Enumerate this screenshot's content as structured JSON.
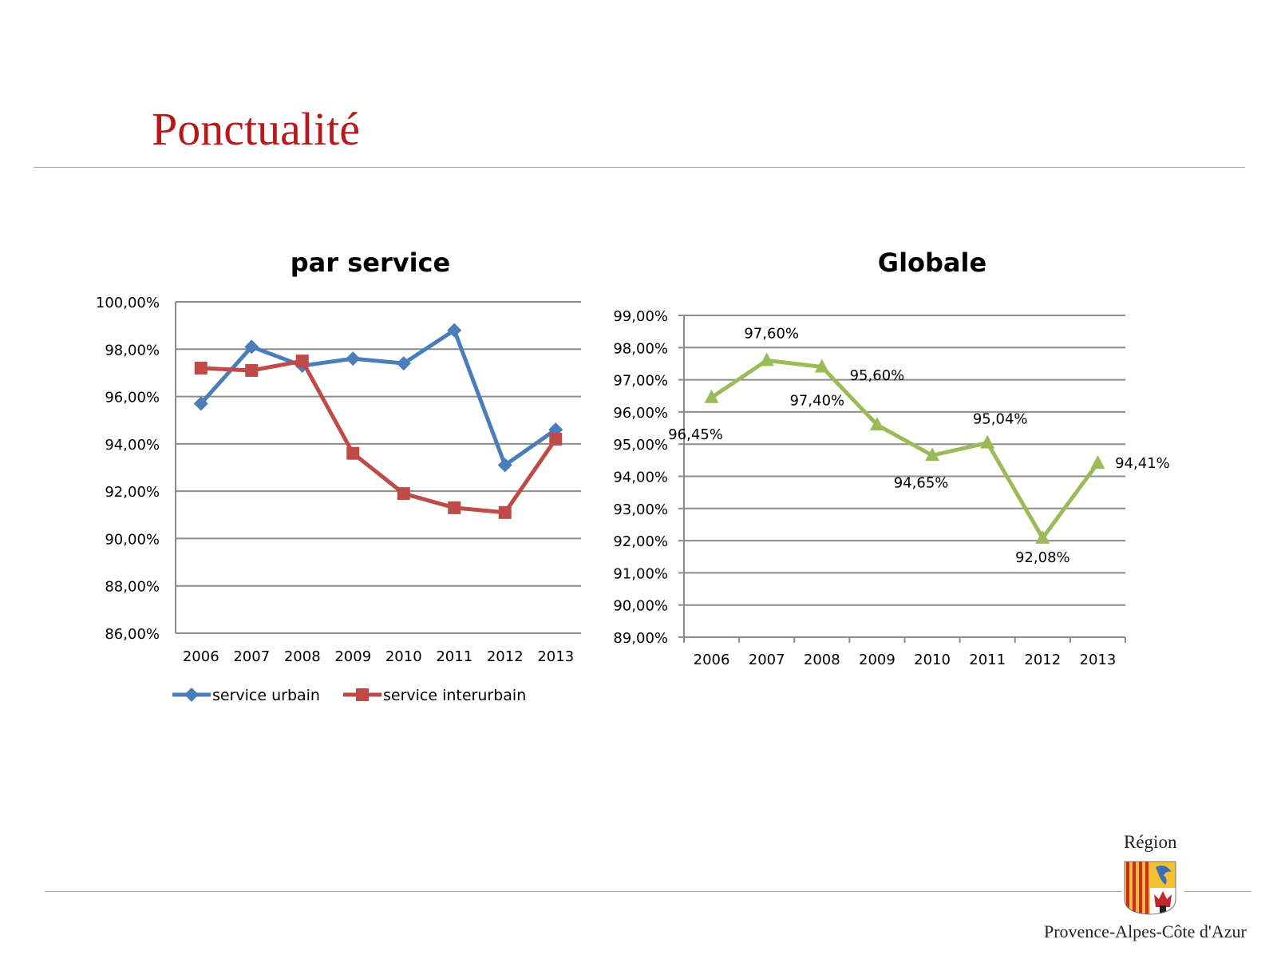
{
  "slide": {
    "title": "Ponctualité"
  },
  "footer": {
    "region_label": "Région",
    "region_name": "Provence-Alpes-Côte d'Azur"
  },
  "colors": {
    "title": "#b7191a",
    "urbain": "#4a7ebb",
    "interurbain": "#be4b48",
    "globale": "#9bbb59",
    "rule": "#b89a9a"
  },
  "chart_data": [
    {
      "type": "line",
      "title": "par service",
      "categories": [
        "2006",
        "2007",
        "2008",
        "2009",
        "2010",
        "2011",
        "2012",
        "2013"
      ],
      "series": [
        {
          "name": "service urbain",
          "color": "#4a7ebb",
          "marker": "diamond",
          "values": [
            95.7,
            98.1,
            97.3,
            97.6,
            97.4,
            98.8,
            93.1,
            94.6
          ]
        },
        {
          "name": "service interurbain",
          "color": "#be4b48",
          "marker": "square",
          "values": [
            97.2,
            97.1,
            97.5,
            93.6,
            91.9,
            91.3,
            91.1,
            94.2
          ]
        }
      ],
      "ylim": [
        86,
        100
      ],
      "ystep": 2,
      "ytick_labels": [
        "86,00%",
        "88,00%",
        "90,00%",
        "92,00%",
        "94,00%",
        "96,00%",
        "98,00%",
        "100,00%"
      ],
      "grid": true,
      "legend": "bottom"
    },
    {
      "type": "line",
      "title": "Globale",
      "categories": [
        "2006",
        "2007",
        "2008",
        "2009",
        "2010",
        "2011",
        "2012",
        "2013"
      ],
      "series": [
        {
          "color": "#9bbb59",
          "marker": "triangle",
          "values": [
            96.45,
            97.6,
            97.4,
            95.6,
            94.65,
            95.04,
            92.08,
            94.41
          ]
        }
      ],
      "data_labels": [
        "96,45%",
        "97,60%",
        "97,40%",
        "95,60%",
        "94,65%",
        "95,04%",
        "92,08%",
        "94,41%"
      ],
      "ylim": [
        89,
        99
      ],
      "ystep": 1,
      "ytick_labels": [
        "89,00%",
        "90,00%",
        "91,00%",
        "92,00%",
        "93,00%",
        "94,00%",
        "95,00%",
        "96,00%",
        "97,00%",
        "98,00%",
        "99,00%"
      ],
      "grid": true,
      "legend": "none"
    }
  ]
}
